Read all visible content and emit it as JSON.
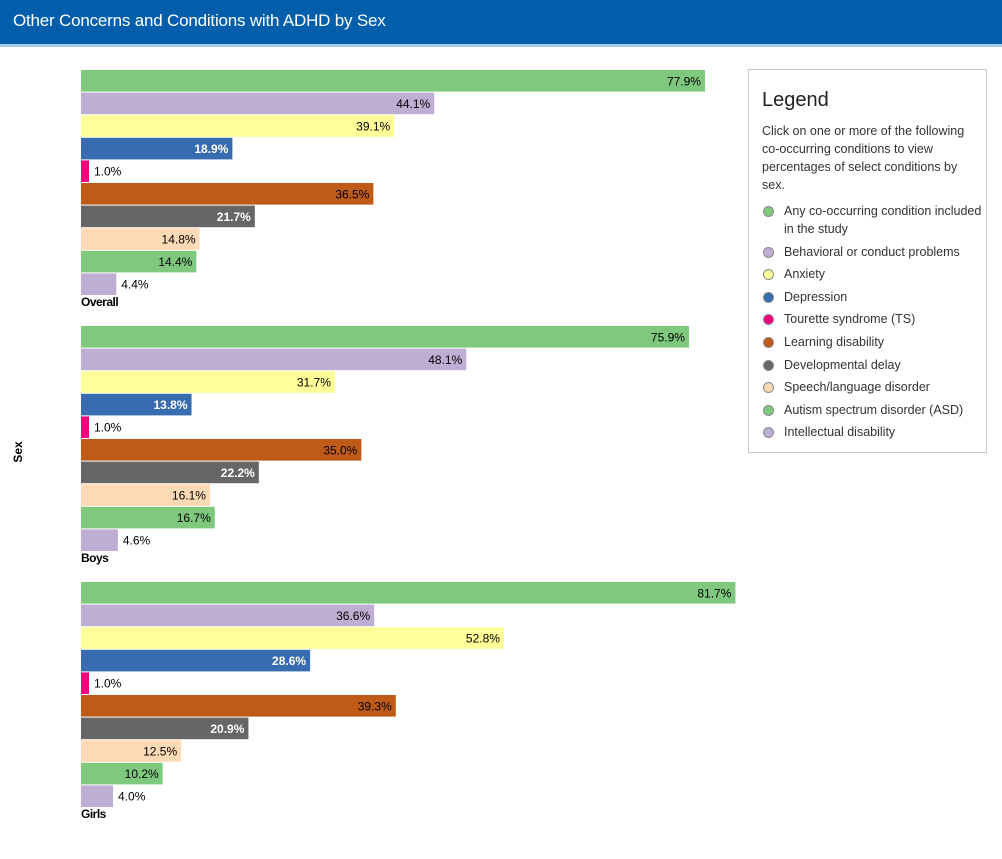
{
  "header": {
    "title": "Other Concerns and Conditions with ADHD by Sex"
  },
  "legend": {
    "title": "Legend",
    "description": "Click on one or more of the following co-occurring conditions to view percentages of select conditions by sex."
  },
  "chart_data": {
    "type": "bar",
    "orientation": "horizontal",
    "title": "Other Concerns and Conditions with ADHD by Sex",
    "ylabel": "Sex",
    "xlabel": "",
    "xlim": [
      0,
      100
    ],
    "grid": false,
    "legend_position": "right",
    "categories": [
      "Overall",
      "Boys",
      "Girls"
    ],
    "series": [
      {
        "name": "Any co-occurring condition included in the study",
        "color": "#7fc97f",
        "label_color": "#000000",
        "values": [
          77.9,
          75.9,
          81.7
        ]
      },
      {
        "name": "Behavioral or conduct problems",
        "color": "#beaed4",
        "label_color": "#000000",
        "values": [
          44.1,
          48.1,
          36.6
        ]
      },
      {
        "name": "Anxiety",
        "color": "#ffff99",
        "label_color": "#000000",
        "values": [
          39.1,
          31.7,
          52.8
        ]
      },
      {
        "name": "Depression",
        "color": "#386cb0",
        "label_color": "#ffffff",
        "values": [
          18.9,
          13.8,
          28.6
        ]
      },
      {
        "name": "Tourette syndrome (TS)",
        "color": "#f0027f",
        "label_color": "#000000",
        "values": [
          1.0,
          1.0,
          1.0
        ]
      },
      {
        "name": "Learning disability",
        "color": "#bf5b17",
        "label_color": "#000000",
        "values": [
          36.5,
          35.0,
          39.3
        ]
      },
      {
        "name": "Developmental delay",
        "color": "#666666",
        "label_color": "#ffffff",
        "values": [
          21.7,
          22.2,
          20.9
        ]
      },
      {
        "name": "Speech/language disorder",
        "color": "#fdd9b5",
        "label_color": "#000000",
        "values": [
          14.8,
          16.1,
          12.5
        ]
      },
      {
        "name": "Autism spectrum disorder (ASD)",
        "color": "#7fc97f",
        "label_color": "#000000",
        "values": [
          14.4,
          16.7,
          10.2
        ]
      },
      {
        "name": "Intellectual disability",
        "color": "#beaed4",
        "label_color": "#000000",
        "values": [
          4.4,
          4.6,
          4.0
        ]
      }
    ]
  }
}
